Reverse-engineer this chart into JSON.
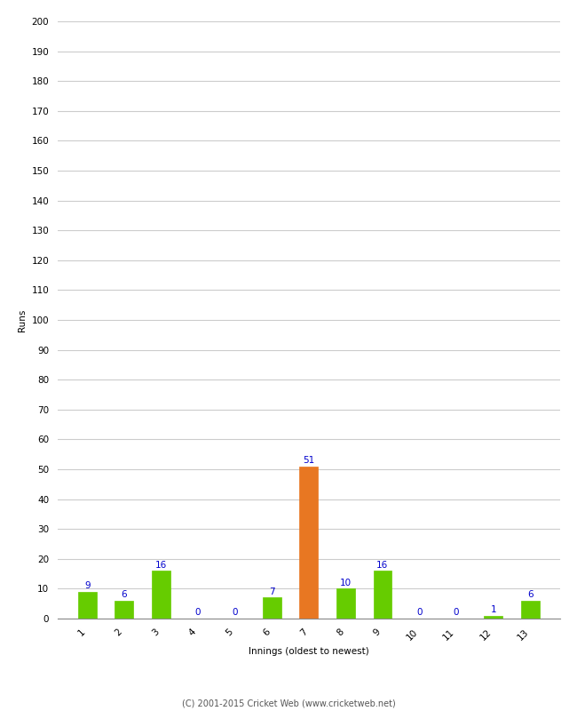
{
  "innings": [
    1,
    2,
    3,
    4,
    5,
    6,
    7,
    8,
    9,
    10,
    11,
    12,
    13
  ],
  "values": [
    9,
    6,
    16,
    0,
    0,
    7,
    51,
    10,
    16,
    0,
    0,
    1,
    6
  ],
  "bar_colors": [
    "#66cc00",
    "#66cc00",
    "#66cc00",
    "#66cc00",
    "#66cc00",
    "#66cc00",
    "#e87722",
    "#66cc00",
    "#66cc00",
    "#66cc00",
    "#66cc00",
    "#66cc00",
    "#66cc00"
  ],
  "xlabel": "Innings (oldest to newest)",
  "ylabel": "Runs",
  "ylim": [
    0,
    200
  ],
  "yticks": [
    0,
    10,
    20,
    30,
    40,
    50,
    60,
    70,
    80,
    90,
    100,
    110,
    120,
    130,
    140,
    150,
    160,
    170,
    180,
    190,
    200
  ],
  "label_color": "#0000cc",
  "label_fontsize": 7.5,
  "axis_label_fontsize": 7.5,
  "tick_fontsize": 7.5,
  "footer": "(C) 2001-2015 Cricket Web (www.cricketweb.net)",
  "background_color": "#ffffff",
  "grid_color": "#cccccc"
}
